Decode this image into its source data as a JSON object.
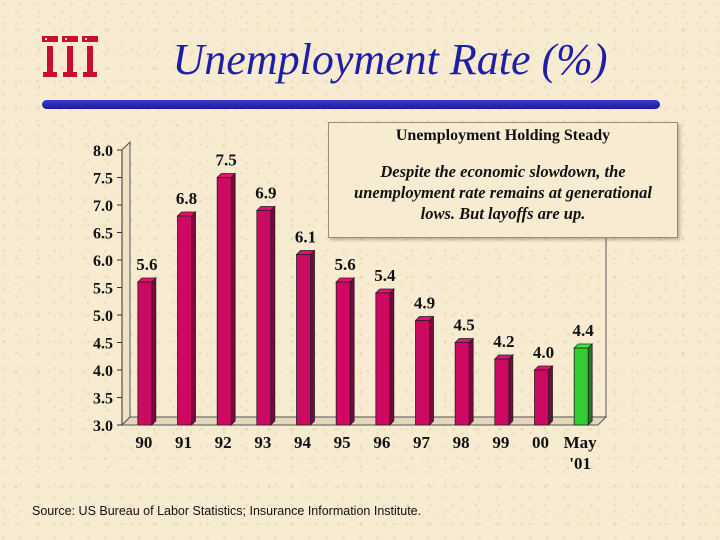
{
  "slide": {
    "title": "Unemployment Rate (%)",
    "logo": "iii",
    "source": "Source: US Bureau of Labor Statistics; Insurance Information Institute."
  },
  "callout": {
    "title": "Unemployment Holding Steady",
    "body": "Despite the economic slowdown, the unemployment rate remains at generational lows.  But layoffs are up."
  },
  "colors": {
    "title": "#1f1fa6",
    "bar": "#cc0a62",
    "highlight_bar": "#33cc33",
    "text": "#111111"
  },
  "chart_data": {
    "type": "bar",
    "categories": [
      "90",
      "91",
      "92",
      "93",
      "94",
      "95",
      "96",
      "97",
      "98",
      "99",
      "00",
      "May '01"
    ],
    "values": [
      5.6,
      6.8,
      7.5,
      6.9,
      6.1,
      5.6,
      5.4,
      4.9,
      4.5,
      4.2,
      4.0,
      4.4
    ],
    "value_labels": [
      "5.6",
      "6.8",
      "7.5",
      "6.9",
      "6.1",
      "5.6",
      "5.4",
      "4.9",
      "4.5",
      "4.2",
      "4.0",
      "4.4"
    ],
    "highlight_index": 11,
    "ylim": [
      3.0,
      8.0
    ],
    "yticks": [
      "3.0",
      "3.5",
      "4.0",
      "4.5",
      "5.0",
      "5.5",
      "6.0",
      "6.5",
      "7.0",
      "7.5",
      "8.0"
    ],
    "style": "3d",
    "grid": false,
    "legend": "none"
  }
}
